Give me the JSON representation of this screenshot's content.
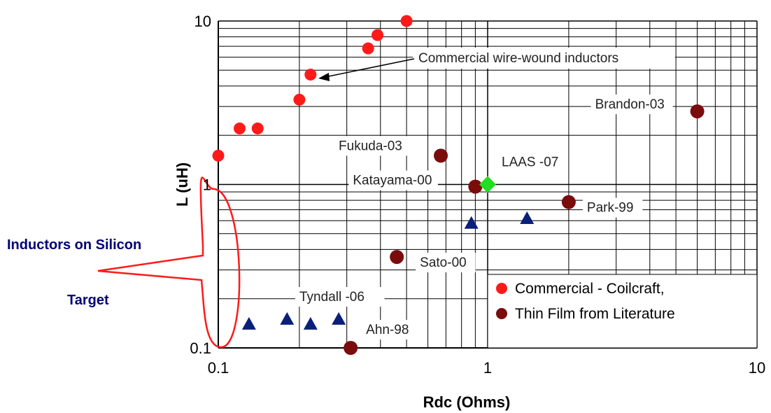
{
  "chart_data": {
    "type": "scatter",
    "xscale": "log",
    "yscale": "log",
    "xlim": [
      0.1,
      10
    ],
    "ylim": [
      0.1,
      10
    ],
    "grid": true,
    "xlabel": "Rdc (Ohms)",
    "ylabel": "L (uH)",
    "x_ticks": [
      "0.1",
      "1",
      "10"
    ],
    "y_ticks": [
      "0.1",
      "1",
      "10"
    ],
    "legend_position": "bottom-right",
    "colors": {
      "commercial": "#ff1a1a",
      "literature": "#7a0c0c",
      "laas": "#22dd22",
      "silicon": "#0a1f7a",
      "target": "#ff1a1a"
    },
    "series": [
      {
        "name": "Commercial - Coilcraft,",
        "marker": "circle",
        "points": [
          {
            "x": 0.1,
            "y": 1.5
          },
          {
            "x": 0.12,
            "y": 2.2
          },
          {
            "x": 0.14,
            "y": 2.2
          },
          {
            "x": 0.2,
            "y": 3.3
          },
          {
            "x": 0.22,
            "y": 4.7
          },
          {
            "x": 0.36,
            "y": 6.8
          },
          {
            "x": 0.39,
            "y": 8.2
          },
          {
            "x": 0.5,
            "y": 10
          }
        ]
      },
      {
        "name": "Thin Film from Literature",
        "marker": "circle",
        "points": [
          {
            "x": 6,
            "y": 2.8,
            "label": "Brandon-03"
          },
          {
            "x": 0.67,
            "y": 1.5,
            "label": "Fukuda-03"
          },
          {
            "x": 0.9,
            "y": 0.97,
            "label": "Katayama-00"
          },
          {
            "x": 2.0,
            "y": 0.78,
            "label": "Park-99"
          },
          {
            "x": 0.46,
            "y": 0.36,
            "label": "Sato-00"
          },
          {
            "x": 0.31,
            "y": 0.1,
            "label": "Ahn-98"
          }
        ]
      },
      {
        "marker": "diamond",
        "points": [
          {
            "x": 1.0,
            "y": 1.0,
            "label": "LAAS -07"
          }
        ]
      },
      {
        "marker": "triangle",
        "label": "Tyndall -06",
        "points": [
          {
            "x": 0.13,
            "y": 0.14
          },
          {
            "x": 0.18,
            "y": 0.15
          },
          {
            "x": 0.22,
            "y": 0.14
          },
          {
            "x": 0.28,
            "y": 0.15
          },
          {
            "x": 0.87,
            "y": 0.58
          },
          {
            "x": 1.4,
            "y": 0.62
          }
        ]
      }
    ],
    "annotations": {
      "wirewound": "Commercial wire-wound inductors",
      "silicon_line1": "Inductors on Silicon",
      "target": "Target"
    }
  }
}
